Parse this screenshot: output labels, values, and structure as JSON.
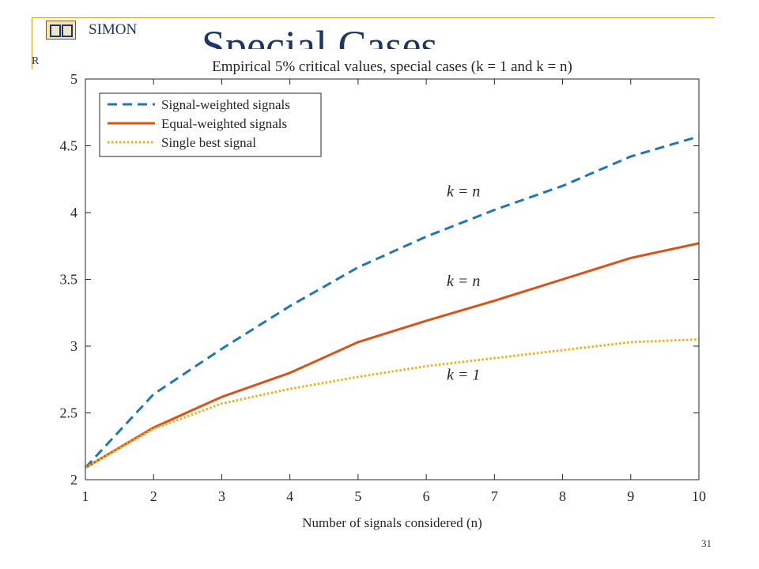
{
  "slide": {
    "title": "Special Cases",
    "logo_text": "SIMON",
    "logo_sub": "R",
    "page_number": "31"
  },
  "chart_data": {
    "type": "line",
    "title": "Empirical 5% critical values, special cases (k = 1 and k = n)",
    "xlabel": "Number of signals considered (n)",
    "ylabel": "",
    "x": [
      1,
      2,
      3,
      4,
      5,
      6,
      7,
      8,
      9,
      10
    ],
    "xlim": [
      1,
      10
    ],
    "ylim": [
      2,
      5
    ],
    "xticks": [
      "1",
      "2",
      "3",
      "4",
      "5",
      "6",
      "7",
      "8",
      "9",
      "10"
    ],
    "yticks": [
      "2",
      "2.5",
      "3",
      "3.5",
      "4",
      "4.5",
      "5"
    ],
    "legend_position": "top-left",
    "series": [
      {
        "name": "Signal-weighted signals",
        "style": "dashed",
        "color": "#1f77b4",
        "values": [
          2.09,
          2.64,
          2.98,
          3.3,
          3.59,
          3.82,
          4.02,
          4.2,
          4.42,
          4.57
        ]
      },
      {
        "name": "Equal-weighted signals",
        "style": "solid",
        "color": "#d95319",
        "values": [
          2.09,
          2.39,
          2.62,
          2.8,
          3.03,
          3.19,
          3.34,
          3.5,
          3.66,
          3.77
        ]
      },
      {
        "name": "Single best signal",
        "style": "dotted",
        "color": "#edb120",
        "values": [
          2.09,
          2.38,
          2.57,
          2.68,
          2.77,
          2.85,
          2.91,
          2.97,
          3.03,
          3.05
        ]
      }
    ],
    "annotations": [
      {
        "text": "k = n",
        "x": 6.3,
        "y": 4.12
      },
      {
        "text": "k = n",
        "x": 6.3,
        "y": 3.45
      },
      {
        "text": "k = 1",
        "x": 6.3,
        "y": 2.75
      }
    ]
  }
}
